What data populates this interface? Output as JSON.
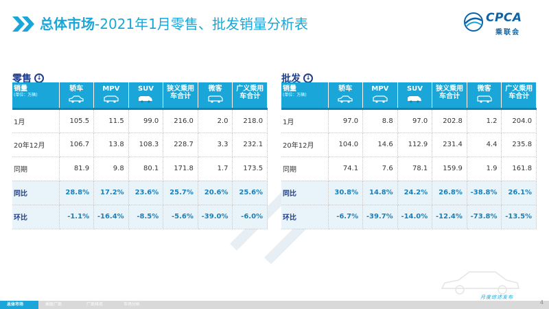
{
  "header": {
    "title_bold": "总体市场",
    "title_rest": "-2021年1月零售、批发销量分析表"
  },
  "logo": {
    "text": "CPCA",
    "sub": "乘联会"
  },
  "colors": {
    "accent": "#1aa6d8",
    "dark_blue": "#1f3c88",
    "header_text": "#ffffff",
    "pct_text": "#1a7fb8"
  },
  "retail": {
    "section_title": "零售",
    "header": {
      "label_main": "销量",
      "label_unit": "(单位：万辆)",
      "columns": [
        "轿车",
        "MPV",
        "SUV",
        "狭义乘用车合计",
        "微客",
        "广义乘用车合计"
      ]
    },
    "rows": [
      {
        "label": "1月",
        "values": [
          "105.5",
          "11.5",
          "99.0",
          "216.0",
          "2.0",
          "218.0"
        ]
      },
      {
        "label": "20年12月",
        "values": [
          "106.7",
          "13.8",
          "108.3",
          "228.7",
          "3.3",
          "232.1"
        ]
      },
      {
        "label": "同期",
        "values": [
          "81.9",
          "9.8",
          "80.1",
          "171.8",
          "1.7",
          "173.5"
        ]
      },
      {
        "label": "同比",
        "values": [
          "28.8%",
          "17.2%",
          "23.6%",
          "25.7%",
          "20.6%",
          "25.6%"
        ]
      },
      {
        "label": "环比",
        "values": [
          "-1.1%",
          "-16.4%",
          "-8.5%",
          "-5.6%",
          "-39.0%",
          "-6.0%"
        ]
      }
    ]
  },
  "wholesale": {
    "section_title": "批发",
    "header": {
      "label_main": "销量",
      "label_unit": "(单位：万辆)",
      "columns": [
        "轿车",
        "MPV",
        "SUV",
        "狭义乘用车合计",
        "微客",
        "广义乘用车合计"
      ]
    },
    "rows": [
      {
        "label": "1月",
        "values": [
          "97.0",
          "8.8",
          "97.0",
          "202.8",
          "1.2",
          "204.0"
        ]
      },
      {
        "label": "20年12月",
        "values": [
          "104.0",
          "14.6",
          "112.9",
          "231.4",
          "4.4",
          "235.8"
        ]
      },
      {
        "label": "同期",
        "values": [
          "74.1",
          "7.6",
          "78.1",
          "159.9",
          "1.9",
          "161.8"
        ]
      },
      {
        "label": "同比",
        "values": [
          "30.8%",
          "14.8%",
          "24.2%",
          "26.8%",
          "-38.8%",
          "26.1%"
        ]
      },
      {
        "label": "环比",
        "values": [
          "-6.7%",
          "-39.7%",
          "-14.0%",
          "-12.4%",
          "-73.8%",
          "-13.5%"
        ]
      }
    ]
  },
  "bottom_nav": [
    "总体市场",
    "乘联厂商",
    "厂商排名",
    "市场分析"
  ],
  "footer_text": "月度综述发布",
  "page_number": "4"
}
